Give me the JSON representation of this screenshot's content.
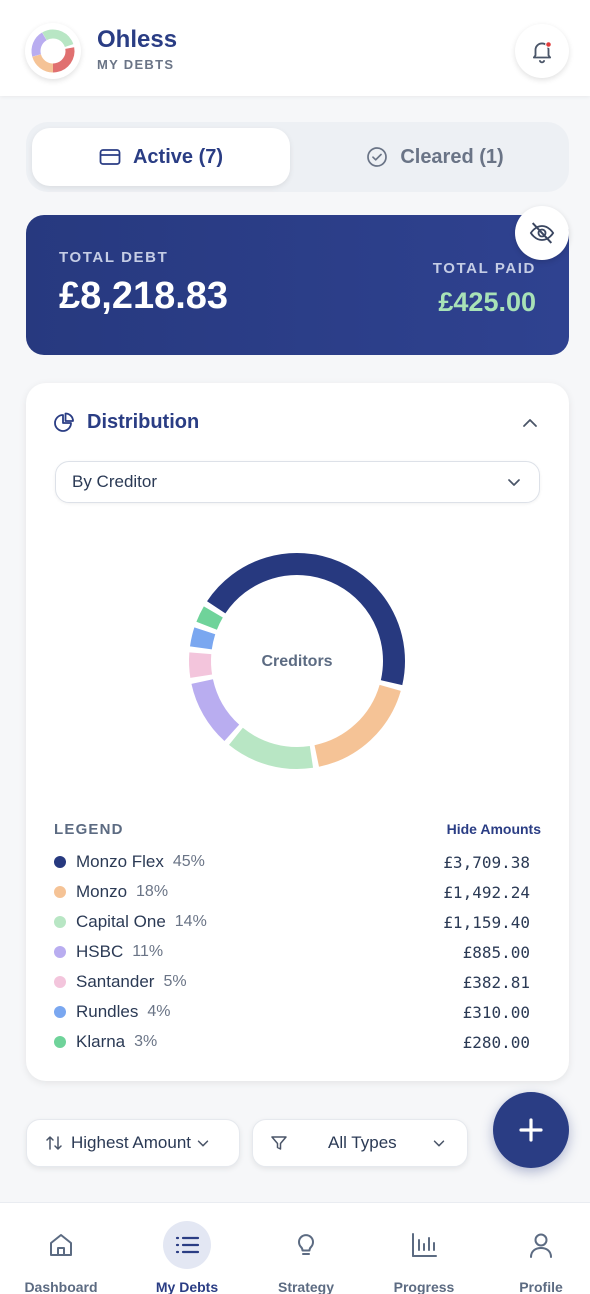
{
  "header": {
    "title": "Ohless",
    "subtitle": "MY DEBTS"
  },
  "tabs": [
    {
      "label": "Active (7)",
      "icon": "card-icon",
      "active": true
    },
    {
      "label": "Cleared (1)",
      "icon": "check-circle-icon",
      "active": false
    }
  ],
  "summary": {
    "total_debt_label": "TOTAL DEBT",
    "total_debt": "£8,218.83",
    "total_paid_label": "TOTAL PAID",
    "total_paid": "£425.00"
  },
  "distribution": {
    "title": "Distribution",
    "group_by": "By Creditor",
    "center_label": "Creditors",
    "legend_heading": "LEGEND",
    "hide_amounts_label": "Hide Amounts",
    "items": [
      {
        "name": "Monzo Flex",
        "pct": "45%",
        "amount": "£3,709.38",
        "color": "#27397f"
      },
      {
        "name": "Monzo",
        "pct": "18%",
        "amount": "£1,492.24",
        "color": "#f5c396"
      },
      {
        "name": "Capital One",
        "pct": "14%",
        "amount": "£1,159.40",
        "color": "#b8e6c4"
      },
      {
        "name": "HSBC",
        "pct": "11%",
        "amount": "£885.00",
        "color": "#b9adf0"
      },
      {
        "name": "Santander",
        "pct": "5%",
        "amount": "£382.81",
        "color": "#f3c5dc"
      },
      {
        "name": "Rundles",
        "pct": "4%",
        "amount": "£310.00",
        "color": "#7aa7f0"
      },
      {
        "name": "Klarna",
        "pct": "3%",
        "amount": "£280.00",
        "color": "#6fd39a"
      }
    ]
  },
  "chart_data": {
    "type": "pie",
    "categories": [
      "Monzo Flex",
      "Monzo",
      "Capital One",
      "HSBC",
      "Santander",
      "Rundles",
      "Klarna"
    ],
    "values": [
      3709.38,
      1492.24,
      1159.4,
      885.0,
      382.81,
      310.0,
      280.0
    ],
    "title": "",
    "center_label": "Creditors"
  },
  "filters": {
    "sort_label": "Highest Amount",
    "type_label": "All Types"
  },
  "nav": [
    {
      "label": "Dashboard",
      "icon": "home-icon"
    },
    {
      "label": "My Debts",
      "icon": "list-icon",
      "active": true
    },
    {
      "label": "Strategy",
      "icon": "lightbulb-icon"
    },
    {
      "label": "Progress",
      "icon": "bar-chart-icon"
    },
    {
      "label": "Profile",
      "icon": "user-icon"
    }
  ]
}
